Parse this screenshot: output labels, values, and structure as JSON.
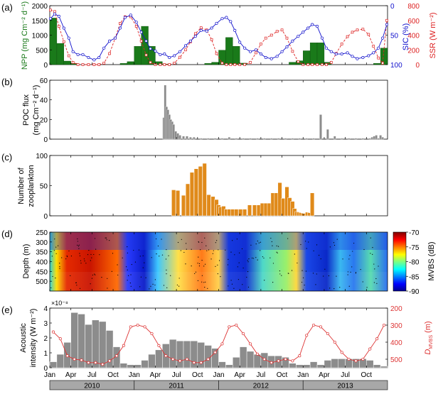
{
  "panel_labels": [
    "(a)",
    "(b)",
    "(c)",
    "(d)",
    "(e)"
  ],
  "x_axis": {
    "tick_labels": [
      "Jan",
      "Apr",
      "Jul",
      "Oct",
      "Jan",
      "Apr",
      "Jul",
      "Oct",
      "Jan",
      "Apr",
      "Jul",
      "Oct",
      "Jan",
      "Apr",
      "Jul",
      "Oct"
    ],
    "years": [
      "2010",
      "2011",
      "2012",
      "2013"
    ]
  },
  "colors": {
    "npp": "#1a7a1a",
    "sic": "#1010cc",
    "ssr": "#dd2222",
    "bars": "#8c8c8c",
    "zoo": "#e08a1a",
    "dvbs": "#dd3333"
  },
  "chart_data": [
    {
      "panel": "(a)",
      "type": "bar+line",
      "x_unit": "month index (0 = Jan 2010)",
      "series": [
        {
          "name": "NPP",
          "type": "bar",
          "ylabel": "NPP (mg Cm⁻² d⁻¹)",
          "ylim": [
            0,
            2000
          ],
          "yticks": [
            "0",
            "500",
            "1000",
            "1500",
            "2000"
          ],
          "x": [
            0,
            1,
            2,
            3,
            4,
            5,
            6,
            7,
            8,
            9,
            10,
            11,
            12,
            13,
            14,
            15,
            16,
            17,
            18,
            19,
            20,
            21,
            22,
            23,
            24,
            25,
            26,
            27,
            28,
            29,
            30,
            31,
            32,
            33,
            34,
            35,
            36,
            37,
            38,
            39,
            40,
            41,
            42,
            43,
            44,
            45,
            46,
            47
          ],
          "values": [
            1580,
            720,
            120,
            40,
            0,
            0,
            0,
            0,
            0,
            0,
            40,
            100,
            620,
            1300,
            620,
            100,
            20,
            0,
            0,
            0,
            0,
            0,
            40,
            80,
            490,
            920,
            620,
            50,
            0,
            0,
            0,
            0,
            0,
            0,
            80,
            130,
            470,
            740,
            740,
            80,
            0,
            0,
            0,
            0,
            0,
            0,
            40,
            560
          ]
        },
        {
          "name": "SIC",
          "type": "line",
          "ylabel": "SIC (%)",
          "ylim": [
            0,
            100
          ],
          "inverted": true,
          "yticks": [
            "0",
            "50",
            "100"
          ],
          "x": [
            -0.4,
            0.2,
            0.8,
            1.5,
            2.2,
            2.8,
            3.5,
            4.2,
            5.0,
            5.8,
            6.5,
            7.2,
            8.0,
            8.8,
            9.5,
            10.2,
            11.0,
            11.8,
            12.5,
            13.2,
            13.8,
            14.5,
            15.2,
            15.8,
            16.5,
            17.2,
            18.0,
            18.8,
            19.5,
            20.2,
            21.0,
            21.8,
            22.5,
            23.2,
            24.0,
            24.6,
            25.2,
            25.8,
            26.5,
            27.2,
            28.0,
            28.8,
            29.5,
            30.2,
            31.0,
            31.8,
            32.5,
            33.2,
            34.0,
            34.8,
            35.5,
            36.2,
            36.8,
            37.5,
            38.2,
            38.8,
            39.5,
            40.2,
            41.0,
            41.8,
            42.5,
            43.2,
            44.0,
            44.8,
            45.5,
            46.2,
            46.8,
            47.4
          ],
          "values": [
            22,
            14,
            18,
            38,
            55,
            78,
            83,
            83,
            88,
            92,
            88,
            72,
            60,
            55,
            38,
            20,
            16,
            28,
            45,
            60,
            73,
            77,
            83,
            82,
            88,
            85,
            78,
            68,
            60,
            52,
            42,
            43,
            38,
            30,
            22,
            20,
            27,
            42,
            62,
            72,
            78,
            75,
            82,
            88,
            90,
            86,
            78,
            70,
            60,
            52,
            45,
            38,
            32,
            35,
            55,
            72,
            78,
            82,
            82,
            80,
            86,
            90,
            88,
            85,
            80,
            72,
            55,
            32
          ]
        },
        {
          "name": "SSR",
          "type": "line",
          "ylabel": "SSR (W m⁻²)",
          "ylim": [
            0,
            800
          ],
          "yticks": [
            "0",
            "200",
            "400",
            "600",
            "800"
          ],
          "x": [
            -0.4,
            0.2,
            0.8,
            1.5,
            2.2,
            2.8,
            3.5,
            4.2,
            5.0,
            5.8,
            6.5,
            7.2,
            8.0,
            8.8,
            9.5,
            10.2,
            11.0,
            11.8,
            12.5,
            13.2,
            13.8,
            14.5,
            15.2,
            15.8,
            16.5,
            17.2,
            18.0,
            18.8,
            19.5,
            20.2,
            21.0,
            21.8,
            22.5,
            23.2,
            24.0,
            24.6,
            25.2,
            25.8,
            26.5,
            27.2,
            28.0,
            28.8,
            29.5,
            30.2,
            31.0,
            31.8,
            32.5,
            33.2,
            34.0,
            34.8,
            35.5,
            36.2,
            36.8,
            37.5,
            38.2,
            38.8,
            39.5,
            40.2,
            41.0,
            41.8,
            42.5,
            43.2,
            44.0,
            44.8,
            45.5,
            46.2,
            46.8,
            47.4
          ],
          "values": [
            740,
            720,
            520,
            310,
            120,
            30,
            0,
            0,
            0,
            0,
            0,
            20,
            150,
            360,
            560,
            650,
            650,
            520,
            320,
            130,
            30,
            0,
            0,
            0,
            0,
            20,
            100,
            200,
            310,
            420,
            500,
            470,
            340,
            150,
            20,
            0,
            0,
            0,
            0,
            0,
            30,
            160,
            280,
            360,
            400,
            450,
            470,
            360,
            180,
            40,
            0,
            0,
            0,
            0,
            0,
            0,
            30,
            150,
            280,
            380,
            440,
            470,
            480,
            410,
            250,
            90,
            20,
            600
          ]
        }
      ]
    },
    {
      "panel": "(b)",
      "type": "bar",
      "ylabel_lines": [
        "POC flux",
        "(mg Cm⁻² d⁻¹)"
      ],
      "ylim": [
        0,
        60
      ],
      "yticks": [
        "0",
        "20",
        "40",
        "60"
      ],
      "x": [
        15.7,
        15.9,
        16.1,
        16.3,
        16.5,
        16.7,
        16.9,
        17.1,
        17.4,
        17.7,
        18.0,
        18.5,
        19.0,
        19.5,
        20.0,
        21.0,
        22.0,
        23.0,
        24.0,
        25.0,
        26.0,
        27.0,
        28.0,
        29.0,
        30.0,
        31.0,
        32.0,
        33.0,
        34.0,
        35.0,
        36.0,
        37.0,
        38.0,
        39.0,
        40.0,
        41.0,
        42.0,
        43.0,
        44.0,
        45.0,
        45.3,
        45.6,
        45.9,
        46.2,
        46.5,
        46.8
      ],
      "values": [
        22,
        55,
        33,
        30,
        25,
        20,
        18,
        15,
        8,
        6,
        4,
        3,
        3,
        2,
        2,
        1,
        1,
        1,
        1,
        2,
        1,
        1,
        1,
        1,
        1,
        1,
        1,
        1,
        1,
        1,
        1,
        1,
        25,
        10,
        3,
        1,
        1,
        1,
        1,
        1,
        2,
        3,
        4,
        1,
        4,
        2
      ]
    },
    {
      "panel": "(c)",
      "type": "bar",
      "ylabel_lines": [
        "Number of",
        "zooplankton"
      ],
      "ylim": [
        0,
        100
      ],
      "yticks": [
        "0",
        "50",
        "100"
      ],
      "x": [
        17.1,
        17.7,
        18.5,
        19.1,
        19.7,
        20.3,
        20.9,
        21.5,
        22.1,
        22.7,
        23.2,
        23.5,
        23.8,
        24.2,
        24.6,
        25.0,
        25.5,
        26.0,
        26.6,
        27.2,
        27.9,
        28.6,
        29.2,
        29.7,
        30.2,
        30.7,
        31.2,
        31.7,
        32.2,
        32.7,
        33.2,
        33.6,
        34.0,
        34.3,
        34.6,
        34.9,
        35.2,
        35.5,
        35.8,
        36.1,
        36.4,
        36.8
      ],
      "values": [
        43,
        42,
        34,
        53,
        72,
        78,
        82,
        87,
        35,
        32,
        27,
        18,
        15,
        16,
        11,
        11,
        11,
        11,
        11,
        11,
        18,
        18,
        18,
        21,
        21,
        21,
        38,
        38,
        55,
        29,
        48,
        30,
        24,
        12,
        7,
        6,
        5,
        4,
        4,
        6,
        5,
        38
      ]
    },
    {
      "panel": "(d)",
      "type": "heatmap",
      "ylabel": "Depth (m)",
      "ylim": [
        250,
        550
      ],
      "inverted": true,
      "yticks": [
        "250",
        "300",
        "350",
        "400",
        "450",
        "500"
      ],
      "colorbar": {
        "label": "MVBS (dB)",
        "range": [
          -90,
          -70
        ],
        "ticks": [
          "-70",
          "-75",
          "-80",
          "-85",
          "-90"
        ]
      }
    },
    {
      "panel": "(e)",
      "type": "bar+line",
      "series": [
        {
          "name": "Acoustic intensity",
          "type": "bar",
          "ylabel_lines": [
            "Acoustic",
            "intensity (W m⁻²)"
          ],
          "ylim": [
            0,
            4
          ],
          "scale_label": "×10⁻⁸",
          "yticks": [
            "0",
            "1",
            "2",
            "3",
            "4"
          ],
          "x": [
            0,
            1,
            2,
            3,
            4,
            5,
            6,
            7,
            8,
            9,
            10,
            11,
            12,
            13,
            14,
            15,
            16,
            17,
            18,
            19,
            20,
            21,
            22,
            23,
            24,
            25,
            26,
            27,
            28,
            29,
            30,
            31,
            32,
            33,
            34,
            35,
            36,
            37,
            38,
            39,
            40,
            41,
            42,
            43,
            44,
            45,
            46,
            47
          ],
          "values": [
            0.4,
            0.9,
            1.7,
            3.7,
            3.6,
            2.9,
            3.2,
            3.1,
            2.5,
            1.4,
            0.3,
            0.2,
            0.2,
            0.5,
            0.9,
            1.2,
            1.6,
            1.9,
            1.8,
            1.8,
            1.8,
            1.7,
            1.5,
            1.3,
            0.4,
            0.2,
            0.7,
            1.4,
            1.1,
            0.9,
            1.0,
            0.8,
            0.8,
            0.7,
            0.3,
            0.2,
            0.2,
            0.4,
            0.2,
            0.5,
            0.6,
            0.6,
            0.6,
            0.6,
            0.6,
            0.5,
            0.2,
            0.1
          ]
        },
        {
          "name": "D_MVBS",
          "type": "line",
          "ylabel": "D",
          "ylabel_sub": "MVBS",
          "ylabel_unit": " (m)",
          "ylim": [
            200,
            550
          ],
          "inverted": true,
          "yticks": [
            "200",
            "300",
            "400",
            "500"
          ],
          "x": [
            0,
            1,
            2,
            3,
            4,
            5,
            6,
            7,
            8,
            9,
            10,
            11,
            12,
            13,
            14,
            15,
            16,
            17,
            18,
            19,
            20,
            21,
            22,
            23,
            24,
            25,
            26,
            27,
            28,
            29,
            30,
            31,
            32,
            33,
            34,
            35,
            36,
            37,
            38,
            39,
            40,
            41,
            42,
            43,
            44,
            45,
            46,
            47
          ],
          "values": [
            340,
            380,
            480,
            500,
            505,
            520,
            520,
            530,
            510,
            480,
            420,
            310,
            300,
            310,
            350,
            420,
            480,
            500,
            510,
            500,
            520,
            520,
            500,
            460,
            410,
            310,
            300,
            350,
            410,
            470,
            500,
            520,
            510,
            500,
            510,
            480,
            360,
            300,
            310,
            350,
            400,
            460,
            500,
            510,
            500,
            440,
            380,
            300
          ]
        }
      ]
    }
  ]
}
